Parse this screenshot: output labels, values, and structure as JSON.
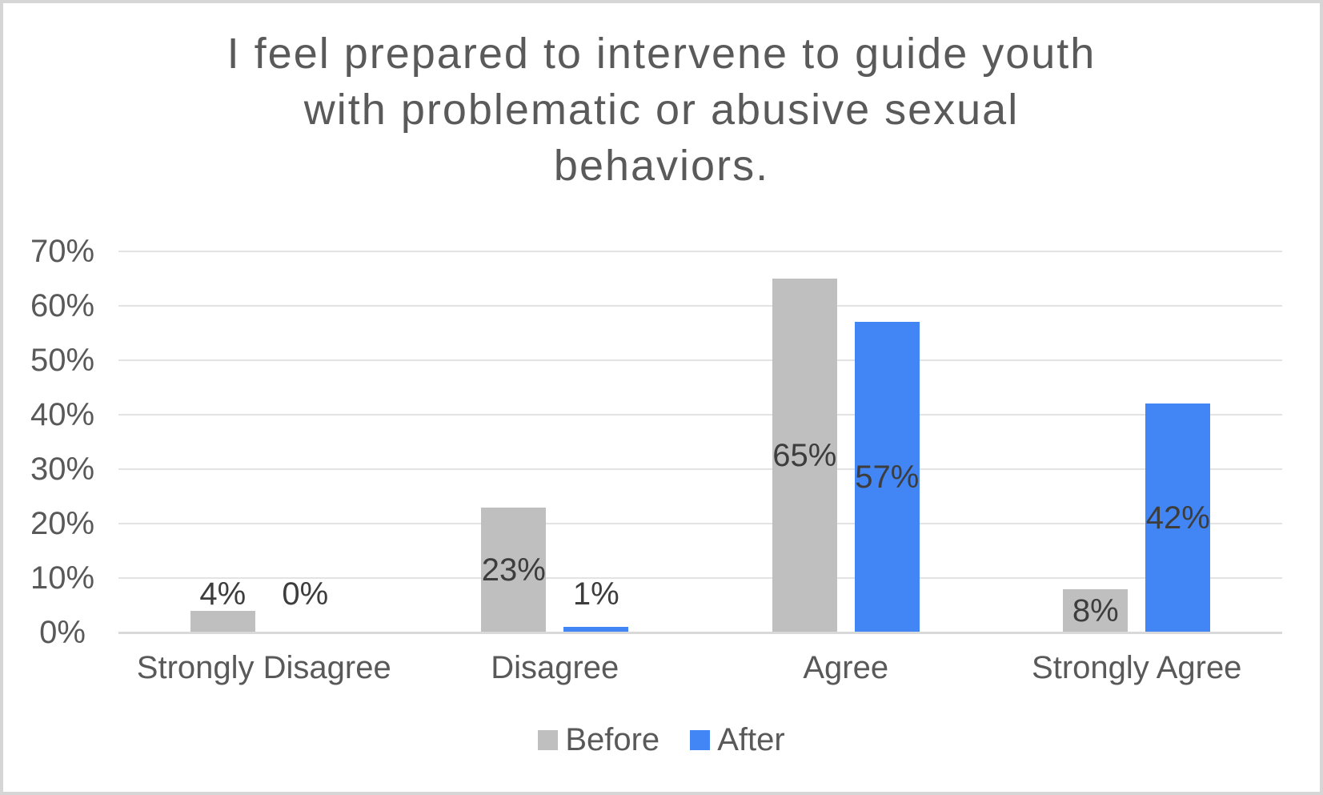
{
  "chart_data": {
    "type": "bar",
    "title": "I feel prepared to intervene to guide youth with problematic or abusive sexual behaviors.",
    "title_lines": [
      "I feel prepared to intervene to guide youth",
      "with problematic or abusive sexual",
      "behaviors."
    ],
    "categories": [
      "Strongly Disagree",
      "Disagree",
      "Agree",
      "Strongly Agree"
    ],
    "series": [
      {
        "name": "Before",
        "color": "#bfbfbf",
        "values": [
          4,
          23,
          65,
          8
        ],
        "labels": [
          "4%",
          "23%",
          "65%",
          "8%"
        ]
      },
      {
        "name": "After",
        "color": "#4285f4",
        "values": [
          0,
          1,
          57,
          42
        ],
        "labels": [
          "0%",
          "1%",
          "57%",
          "42%"
        ]
      }
    ],
    "xlabel": "",
    "ylabel": "",
    "y_ticks": [
      "0%",
      "10%",
      "20%",
      "30%",
      "40%",
      "50%",
      "60%",
      "70%"
    ],
    "ylim": [
      0,
      70
    ],
    "grid": true,
    "legend_position": "bottom"
  },
  "colors": {
    "background": "#ffffff",
    "frame_border": "#d6d6d6",
    "gridline": "#e3e3e3",
    "axis_line": "#d9d9d9",
    "title_text": "#5a5a5a",
    "axis_text": "#595959",
    "data_label_text": "#3d3d3d",
    "series_before": "#bfbfbf",
    "series_after": "#4285f4"
  }
}
